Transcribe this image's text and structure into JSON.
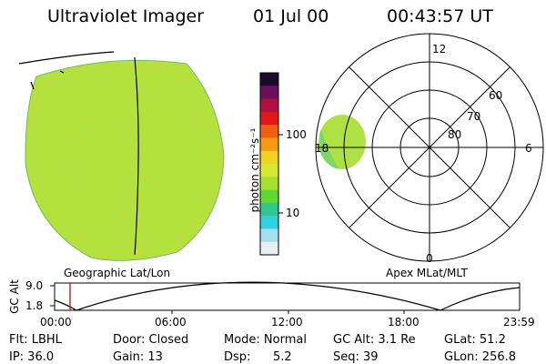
{
  "header": {
    "title": "Ultraviolet Imager",
    "date": "01 Jul 00",
    "time": "00:43:57 UT"
  },
  "colorbar": {
    "unit_label": "photon cm⁻²s⁻¹",
    "ticks": [
      "100",
      "10"
    ],
    "colors": [
      "#1a0a2e",
      "#6b1060",
      "#b01040",
      "#e01818",
      "#f06010",
      "#f59a10",
      "#f2d020",
      "#d8e830",
      "#a8e030",
      "#60d830",
      "#30c890",
      "#30d0e0",
      "#a0e0f0",
      "#e8eef2"
    ]
  },
  "left_panel": {
    "caption": "Geographic Lat/Lon"
  },
  "polar_panel": {
    "caption": "Apex MLat/MLT",
    "mlt_labels": [
      "12",
      "6",
      "0",
      "18"
    ],
    "mlat_labels": [
      "60",
      "70",
      "80"
    ]
  },
  "gc_alt_plot": {
    "ylabel": "GC Alt",
    "yticks": [
      "9.0",
      "1.8"
    ],
    "xticks": [
      "00:00",
      "06:00",
      "12:00",
      "18:00",
      "23:59"
    ],
    "marker_color": "#d01818"
  },
  "info": {
    "flt": "Flt: LBHL",
    "ip": "IP: 36.0",
    "door": "Door: Closed",
    "gain": "Gain: 13",
    "mode": "Mode: Normal",
    "dsp": "Dsp:",
    "dsp_value": "5.2",
    "gc_alt": "GC Alt: 3.1 Re",
    "seq": "Seq: 39",
    "glat": "GLat: 51.2",
    "glon": "GLon: 256.8"
  }
}
